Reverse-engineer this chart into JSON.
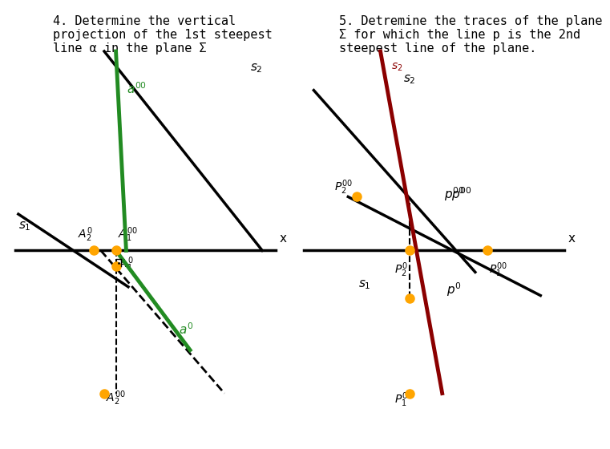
{
  "bg_color": "#ffffff",
  "title4": "4. Determine the vertical\nprojection of the 1st steepest\nline α in the plane Σ",
  "title5": "5. Detremine the traces of the plane\nΣ for which the line p is the 2nd\nsteepest line of the plane.",
  "green": "#228B22",
  "dark_red": "#8B0000",
  "orange": "#FFA500",
  "black": "#000000",
  "lw_main": 2.5,
  "lw_thick": 3.5,
  "dot_size": 8
}
